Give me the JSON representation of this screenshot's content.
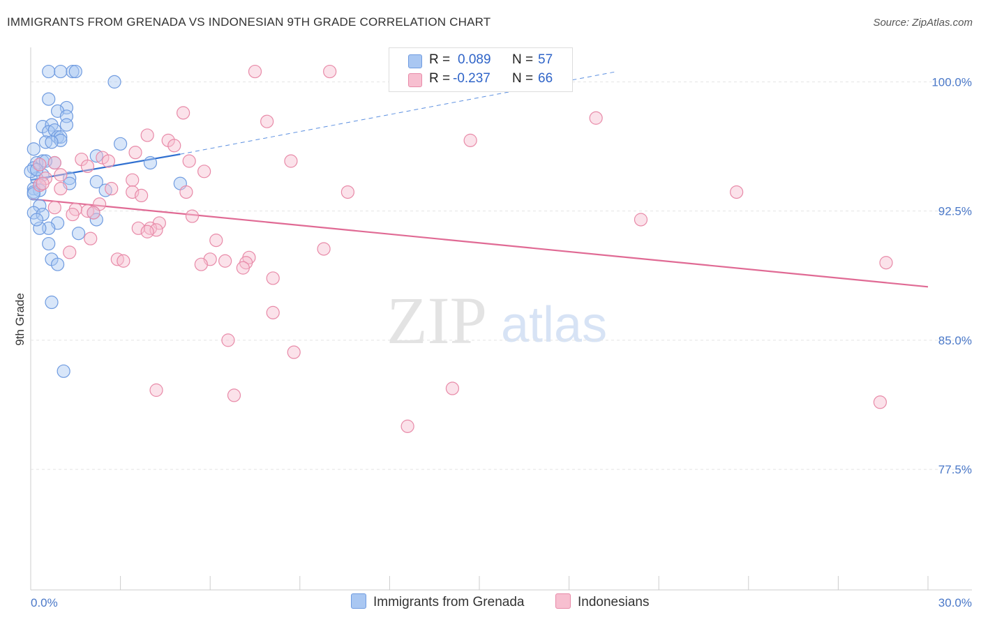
{
  "header": {
    "title": "IMMIGRANTS FROM GRENADA VS INDONESIAN 9TH GRADE CORRELATION CHART",
    "source": "Source: ZipAtlas.com"
  },
  "watermark": {
    "zip": "ZIP",
    "atlas": "atlas"
  },
  "legend": {
    "rows": [
      {
        "r_label": "R =",
        "r_value": "0.089",
        "n_label": "N =",
        "n_value": "57",
        "color": "#a9c7f2",
        "border": "#6f9be0"
      },
      {
        "r_label": "R =",
        "r_value": "-0.237",
        "n_label": "N =",
        "n_value": "66",
        "color": "#f7bfd0",
        "border": "#e88aa8"
      }
    ]
  },
  "bottom_legend": [
    {
      "label": "Immigrants from Grenada",
      "color": "#a9c7f2",
      "border": "#6f9be0"
    },
    {
      "label": "Indonesians",
      "color": "#f7bfd0",
      "border": "#e88aa8"
    }
  ],
  "chart_data": {
    "type": "scatter",
    "title": "IMMIGRANTS FROM GRENADA VS INDONESIAN 9TH GRADE CORRELATION CHART",
    "xlabel": "",
    "ylabel": "9th Grade",
    "xlim": [
      0,
      30
    ],
    "ylim": [
      70.5,
      102.0
    ],
    "x_tick_labels": [
      {
        "value": 0,
        "label": "0.0%"
      },
      {
        "value": 30,
        "label": "30.0%"
      }
    ],
    "y_tick_labels": [
      {
        "value": 100,
        "label": "100.0%"
      },
      {
        "value": 92.5,
        "label": "92.5%"
      },
      {
        "value": 85,
        "label": "85.0%"
      },
      {
        "value": 77.5,
        "label": "77.5%"
      }
    ],
    "grid": true,
    "series": [
      {
        "name": "Immigrants from Grenada",
        "color": "#6f9be0",
        "fill": "#a9c7f2",
        "trend": {
          "x": [
            0.0,
            5.0
          ],
          "y": [
            94.3,
            95.8
          ],
          "dashed_extension": {
            "x": [
              5.0,
              19.6
            ],
            "y": [
              95.8,
              100.6
            ]
          }
        },
        "points": [
          [
            0.6,
            100.6
          ],
          [
            1.0,
            100.6
          ],
          [
            1.4,
            100.6
          ],
          [
            1.5,
            100.6
          ],
          [
            2.8,
            100.0
          ],
          [
            0.6,
            99.0
          ],
          [
            1.2,
            98.5
          ],
          [
            0.9,
            98.3
          ],
          [
            1.2,
            98.0
          ],
          [
            0.4,
            97.4
          ],
          [
            0.7,
            97.5
          ],
          [
            1.2,
            97.5
          ],
          [
            0.6,
            97.1
          ],
          [
            0.8,
            97.2
          ],
          [
            0.9,
            96.8
          ],
          [
            1.0,
            96.8
          ],
          [
            1.0,
            96.6
          ],
          [
            0.5,
            96.5
          ],
          [
            0.7,
            96.5
          ],
          [
            3.0,
            96.4
          ],
          [
            0.1,
            96.1
          ],
          [
            2.2,
            95.7
          ],
          [
            4.0,
            95.3
          ],
          [
            0.4,
            95.4
          ],
          [
            0.8,
            95.3
          ],
          [
            0.2,
            95.3
          ],
          [
            0.1,
            95.0
          ],
          [
            0.4,
            94.6
          ],
          [
            0.2,
            94.4
          ],
          [
            1.3,
            94.4
          ],
          [
            2.2,
            94.2
          ],
          [
            1.3,
            94.1
          ],
          [
            5.0,
            94.1
          ],
          [
            0.3,
            94.0
          ],
          [
            0.1,
            93.8
          ],
          [
            2.5,
            93.7
          ],
          [
            0.3,
            93.7
          ],
          [
            0.1,
            93.6
          ],
          [
            0.3,
            92.8
          ],
          [
            2.1,
            92.4
          ],
          [
            0.1,
            92.4
          ],
          [
            0.4,
            92.3
          ],
          [
            2.2,
            92.0
          ],
          [
            0.9,
            91.8
          ],
          [
            0.6,
            91.5
          ],
          [
            0.3,
            91.5
          ],
          [
            1.6,
            91.2
          ],
          [
            0.6,
            90.6
          ],
          [
            0.7,
            89.7
          ],
          [
            0.9,
            89.4
          ],
          [
            0.7,
            87.2
          ],
          [
            1.1,
            83.2
          ],
          [
            0.2,
            92.0
          ],
          [
            0.0,
            94.8
          ],
          [
            0.2,
            94.9
          ],
          [
            0.5,
            95.4
          ],
          [
            0.1,
            93.5
          ]
        ]
      },
      {
        "name": "Indonesians",
        "color": "#e88aa8",
        "fill": "#f7bfd0",
        "trend": {
          "x": [
            0.0,
            30.0
          ],
          "y": [
            93.2,
            88.1
          ]
        },
        "points": [
          [
            7.5,
            100.6
          ],
          [
            10.0,
            100.6
          ],
          [
            5.1,
            98.2
          ],
          [
            7.9,
            97.7
          ],
          [
            18.9,
            97.9
          ],
          [
            3.9,
            96.9
          ],
          [
            4.6,
            96.6
          ],
          [
            4.8,
            96.3
          ],
          [
            14.7,
            96.6
          ],
          [
            3.5,
            95.9
          ],
          [
            2.4,
            95.6
          ],
          [
            2.6,
            95.4
          ],
          [
            1.7,
            95.5
          ],
          [
            5.3,
            95.4
          ],
          [
            8.7,
            95.4
          ],
          [
            0.8,
            95.3
          ],
          [
            0.3,
            95.2
          ],
          [
            5.8,
            94.8
          ],
          [
            0.5,
            94.4
          ],
          [
            3.4,
            94.3
          ],
          [
            0.3,
            94.0
          ],
          [
            1.0,
            93.8
          ],
          [
            2.7,
            93.8
          ],
          [
            3.4,
            93.6
          ],
          [
            5.2,
            93.6
          ],
          [
            10.6,
            93.6
          ],
          [
            23.6,
            93.6
          ],
          [
            3.7,
            93.4
          ],
          [
            2.3,
            92.9
          ],
          [
            0.8,
            92.7
          ],
          [
            1.5,
            92.6
          ],
          [
            1.9,
            92.5
          ],
          [
            2.1,
            92.4
          ],
          [
            1.4,
            92.3
          ],
          [
            5.4,
            92.2
          ],
          [
            20.4,
            92.0
          ],
          [
            4.3,
            91.8
          ],
          [
            4.0,
            91.5
          ],
          [
            3.6,
            91.5
          ],
          [
            4.2,
            91.4
          ],
          [
            3.9,
            91.3
          ],
          [
            2.0,
            90.9
          ],
          [
            6.2,
            90.8
          ],
          [
            9.8,
            90.3
          ],
          [
            1.3,
            90.1
          ],
          [
            2.9,
            89.7
          ],
          [
            3.1,
            89.6
          ],
          [
            6.0,
            89.7
          ],
          [
            6.5,
            89.6
          ],
          [
            7.3,
            89.8
          ],
          [
            7.2,
            89.5
          ],
          [
            5.7,
            89.4
          ],
          [
            7.1,
            89.2
          ],
          [
            28.6,
            89.5
          ],
          [
            8.1,
            88.6
          ],
          [
            8.1,
            86.6
          ],
          [
            6.6,
            85.0
          ],
          [
            8.8,
            84.3
          ],
          [
            4.2,
            82.1
          ],
          [
            6.8,
            81.8
          ],
          [
            14.1,
            82.2
          ],
          [
            12.6,
            80.0
          ],
          [
            28.4,
            81.4
          ],
          [
            0.4,
            94.1
          ],
          [
            1.0,
            94.6
          ],
          [
            1.9,
            95.1
          ]
        ]
      }
    ]
  }
}
